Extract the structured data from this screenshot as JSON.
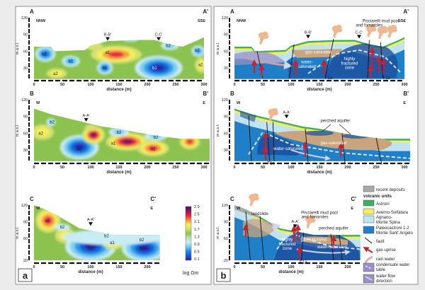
{
  "panels": {
    "a": {
      "label": "a"
    },
    "b": {
      "label": "b"
    }
  },
  "axes": {
    "y_label": "m a.s.l.",
    "x_label": "distance (m)",
    "x_ticks_long": [
      "0",
      "50",
      "100",
      "150",
      "200",
      "250",
      "300"
    ],
    "x_ticks_short": [
      "0",
      "50",
      "100",
      "150",
      "200"
    ],
    "y_ticks_A": [
      "120",
      "90",
      "60",
      "30"
    ],
    "y_ticks_B": [
      "120",
      "90",
      "60",
      "30"
    ],
    "y_ticks_C": [
      "120",
      "90",
      "60",
      "20"
    ]
  },
  "sections": {
    "A": {
      "start": "A",
      "end": "A'",
      "dir_start": "NNW",
      "dir_end": "SSE",
      "marker1": "B-B'",
      "marker2": "C-C'"
    },
    "B": {
      "start": "B",
      "end": "B'",
      "dir_start": "W",
      "dir_end": "E",
      "marker1": "A-A'"
    },
    "C": {
      "start": "C",
      "end": "C'",
      "dir_start": "W",
      "dir_end": "E",
      "marker1": "A-A'"
    }
  },
  "resistivity_labels": {
    "a1": "a1",
    "a2": "a2",
    "b1": "b1",
    "b2": "b2"
  },
  "geology_labels": {
    "gas_saturated": "gas-saturated",
    "water_saturated_1": "water-",
    "water_saturated_2": "saturated",
    "water_saturated": "water-saturated",
    "highly": "highly",
    "fractured": "fractured",
    "zone": "zone",
    "pisciarelli_1": "Pisciarelli mud pool",
    "pisciarelli_2": "and fumaroles",
    "perched_aquifer": "perched aquifer",
    "landslide": "landslide",
    "f1a": "F1a",
    "f1b": "F1b"
  },
  "colorbar": {
    "ticks": [
      "2.9",
      "2.5",
      "2.1",
      "1.7",
      "1.3",
      "0.9",
      "0.5",
      "0.1"
    ],
    "unit": "log Ωm",
    "colors": [
      "#4a1262",
      "#8a1a5a",
      "#e8204a",
      "#f08a3a",
      "#f4ef5a",
      "#d4e06a",
      "#8cc24f",
      "#b8e2b0",
      "#c8ecf4",
      "#6fcaf0",
      "#1f8ae6",
      "#1555d6",
      "#2a20a8"
    ]
  },
  "legend": {
    "recent_deposits": "recent deposits",
    "volcanic_units": "volcanic units",
    "astroni": "Astroni",
    "averno": "Averno-Solfatara",
    "agnano_1": "Agnano-",
    "agnano_2": "Monte Spina",
    "paleo_1": "Paleocastroni 1-2",
    "paleo_2": "Monte Sant' Angelo",
    "fault": "fault",
    "gas_uprise": "gas uprise",
    "rain_water": "rain water",
    "condensate_1": "condensate water",
    "condensate_2": "table",
    "flow_1": "water flow",
    "flow_2": "direction"
  },
  "unit_colors": {
    "recent": "#a8a8a8",
    "astroni": "#3fae6a",
    "averno": "#f4ee5a",
    "agnano": "#bfe3f0",
    "paleo": "#1f7fc8",
    "fractured": "#1d4f9e",
    "gas": "#c9a47c",
    "arrow": "#c8202e",
    "plume": "#f0b890",
    "condensate": "#9a90c8"
  }
}
